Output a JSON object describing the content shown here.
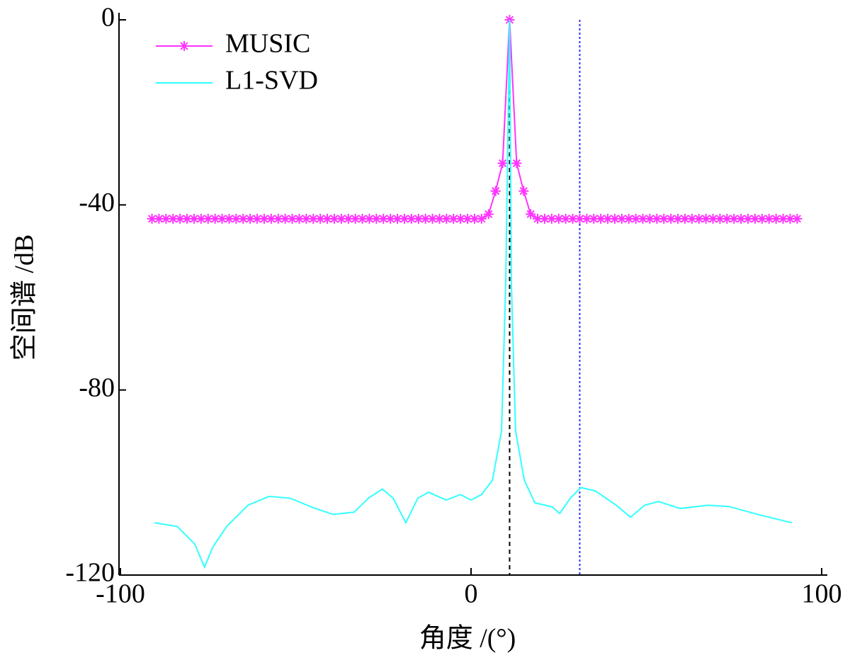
{
  "chart_data": {
    "type": "line",
    "xlabel": "角度 /(°)",
    "ylabel": "空间谱 /dB",
    "xlim": [
      -100,
      100
    ],
    "xticks": [
      -100,
      0,
      100
    ],
    "ylim": [
      -120,
      0
    ],
    "yticks": [
      -120,
      -80,
      -40,
      0
    ],
    "legend": "upper-left",
    "series": [
      {
        "name": "MUSIC",
        "color": "#ff33ff",
        "marker": "star",
        "x": [
          -91,
          -89,
          -87,
          -85,
          -83,
          -81,
          -79,
          -77,
          -75,
          -73,
          -71,
          -69,
          -67,
          -65,
          -63,
          -61,
          -59,
          -57,
          -55,
          -53,
          -51,
          -49,
          -47,
          -45,
          -43,
          -41,
          -39,
          -37,
          -35,
          -33,
          -31,
          -29,
          -27,
          -25,
          -23,
          -21,
          -19,
          -17,
          -15,
          -13,
          -11,
          -9,
          -7,
          -5,
          -3,
          -1,
          1,
          3,
          5,
          7,
          9,
          11,
          13,
          15,
          17,
          19,
          21,
          23,
          25,
          27,
          29,
          31,
          33,
          35,
          37,
          39,
          41,
          43,
          45,
          47,
          49,
          51,
          53,
          55,
          57,
          59,
          61,
          63,
          65,
          67,
          69,
          71,
          73,
          75,
          77,
          79,
          81,
          83,
          85,
          87,
          89,
          91,
          93
        ],
        "values": [
          -43,
          -43,
          -43,
          -43,
          -43,
          -43,
          -43,
          -43,
          -43,
          -43,
          -43,
          -43,
          -43,
          -43,
          -43,
          -43,
          -43,
          -43,
          -43,
          -43,
          -43,
          -43,
          -43,
          -43,
          -43,
          -43,
          -43,
          -43,
          -43,
          -43,
          -43,
          -43,
          -43,
          -43,
          -43,
          -43,
          -43,
          -43,
          -43,
          -43,
          -43,
          -43,
          -43,
          -43,
          -43,
          -43,
          -43,
          -43,
          -42,
          -37,
          -31,
          0,
          -31,
          -37,
          -42,
          -43,
          -43,
          -43,
          -43,
          -43,
          -43,
          -43,
          -43,
          -43,
          -43,
          -43,
          -43,
          -43,
          -43,
          -43,
          -43,
          -43,
          -43,
          -43,
          -43,
          -43,
          -43,
          -43,
          -43,
          -43,
          -43,
          -43,
          -43,
          -43,
          -43,
          -43,
          -43,
          -43,
          -43,
          -43,
          -43,
          -43,
          -43
        ]
      },
      {
        "name": "L1-SVD",
        "color": "#33ffff",
        "x": [
          -90.3,
          -83.8,
          -78.8,
          -76,
          -73.7,
          -69.7,
          -63.6,
          -57.6,
          -51.5,
          -45.5,
          -39.4,
          -33.3,
          -29.3,
          -25.3,
          -22.2,
          -18.6,
          -15.2,
          -12.1,
          -7.1,
          -3,
          0,
          3,
          6.1,
          8.7,
          9.9,
          11,
          11.5,
          12.7,
          15.2,
          18.2,
          21.2,
          23.2,
          25.3,
          28.3,
          31.3,
          35.4,
          41.4,
          45.5,
          49.5,
          53.5,
          59.6,
          67.7,
          73.7,
          81.8,
          91.5
        ],
        "values": [
          -108.7,
          -109.5,
          -113.3,
          -118.3,
          -114,
          -109.5,
          -104.9,
          -103,
          -103.4,
          -105.3,
          -106.9,
          -106.4,
          -103.4,
          -101.4,
          -103.4,
          -108.7,
          -103.4,
          -102.1,
          -103.8,
          -102.6,
          -103.8,
          -102.6,
          -99.5,
          -88.9,
          -56.8,
          0,
          -56.8,
          -88.9,
          -99.5,
          -104.4,
          -104.9,
          -105.3,
          -106.7,
          -103.4,
          -101.1,
          -101.8,
          -104.9,
          -107.5,
          -104.9,
          -104.1,
          -105.6,
          -104.9,
          -105.2,
          -106.9,
          -108.7
        ]
      }
    ],
    "vlines": [
      {
        "x": 11,
        "color": "#000000",
        "dash": "6,5"
      },
      {
        "x": 31,
        "color": "#3333ff",
        "dash": "3,3"
      }
    ]
  }
}
